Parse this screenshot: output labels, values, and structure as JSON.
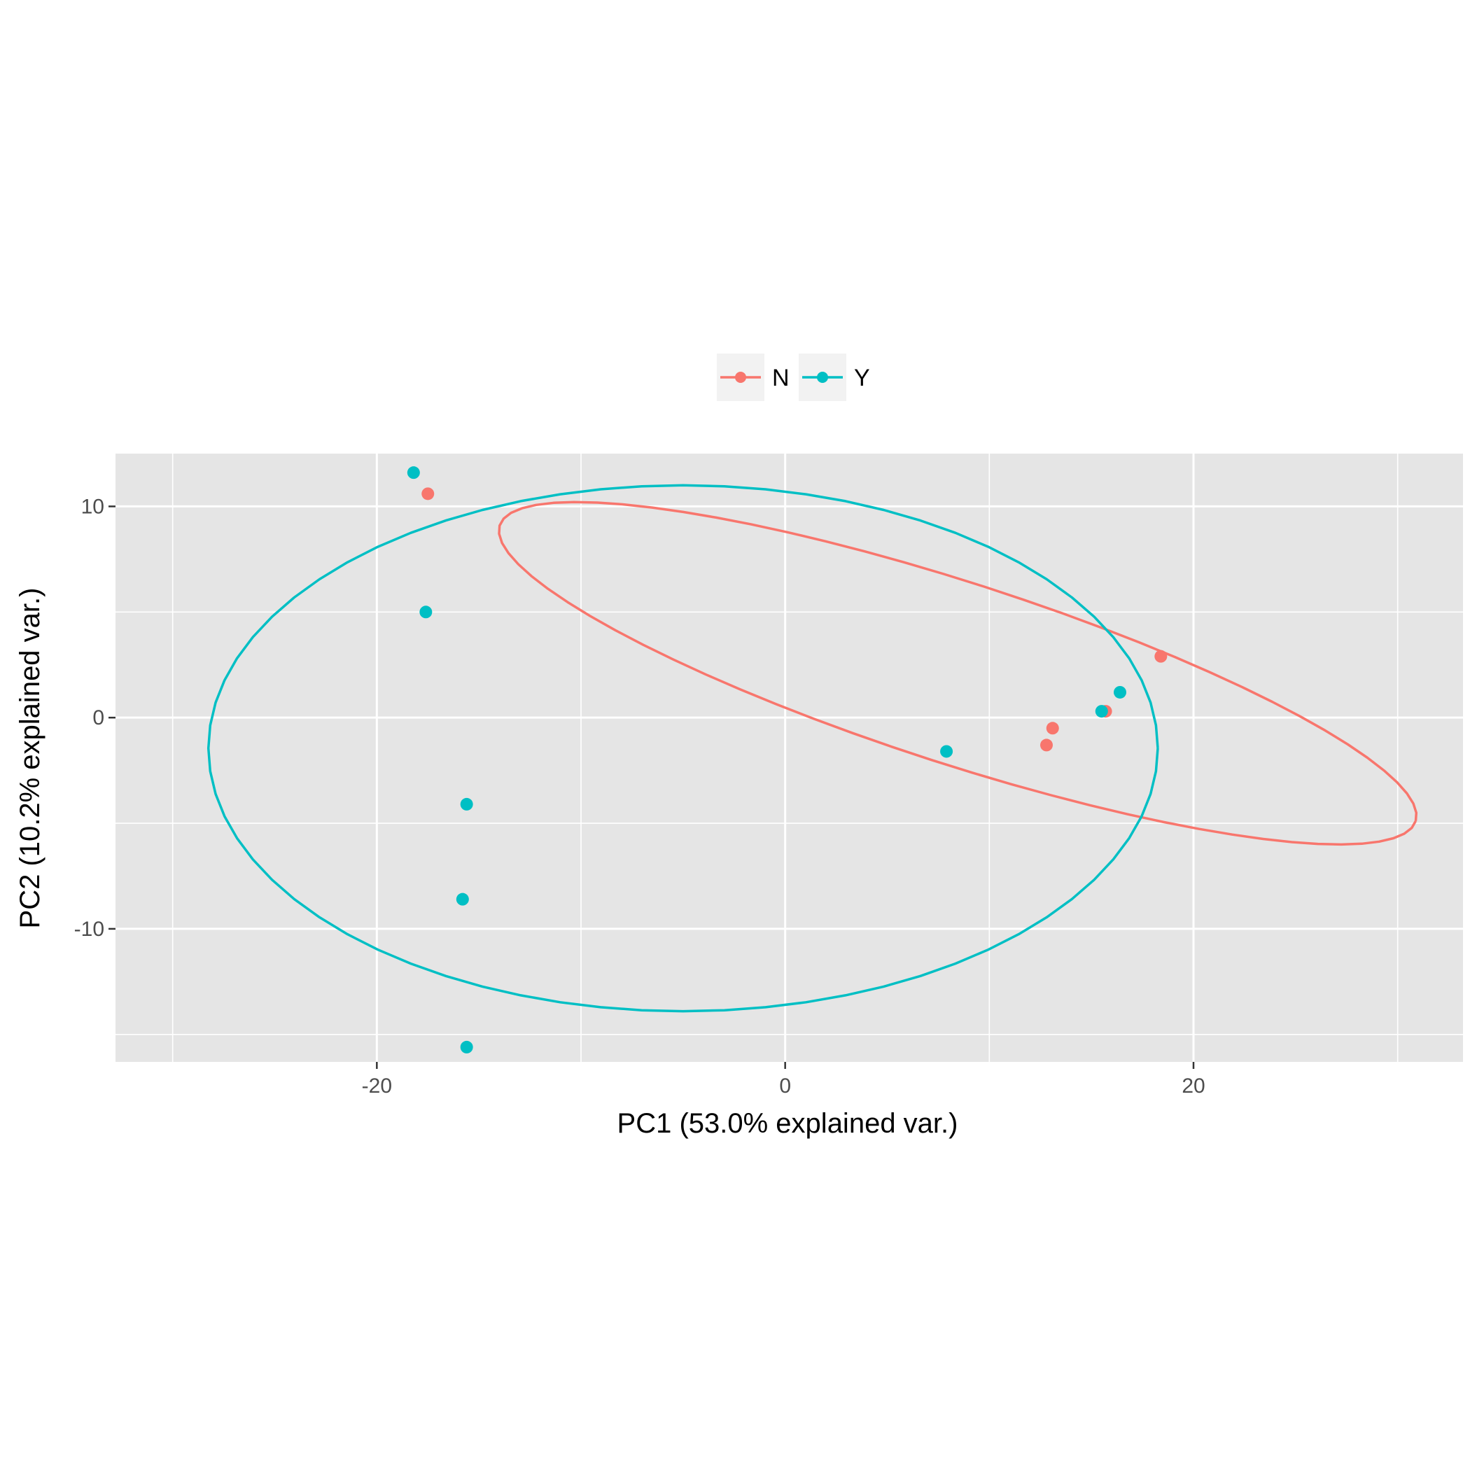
{
  "chart_data": {
    "type": "scatter",
    "title": "",
    "xlabel": "PC1 (53.0% explained var.)",
    "ylabel": "PC2 (10.2% explained var.)",
    "xlim": [
      -32.8,
      33.2
    ],
    "ylim": [
      -16.3,
      12.5
    ],
    "x_ticks": [
      -20,
      0,
      20
    ],
    "x_tick_labels": [
      "-20",
      "0",
      "20"
    ],
    "y_ticks": [
      -10,
      0,
      10
    ],
    "y_tick_labels": [
      "-10",
      "0",
      "10"
    ],
    "grid": true,
    "legend_position": "top",
    "panel_background": "#e5e5e5",
    "series": [
      {
        "name": "N",
        "color": "#f8766d",
        "points": [
          {
            "x": -17.5,
            "y": 10.6
          },
          {
            "x": 13.1,
            "y": -0.5
          },
          {
            "x": 12.8,
            "y": -1.3
          },
          {
            "x": 15.7,
            "y": 0.3
          },
          {
            "x": 18.4,
            "y": 2.9
          }
        ],
        "ellipse": {
          "cx": 8.45,
          "cy": 2.1,
          "rx": 23.5,
          "ry": 4.3,
          "angle_deg": -17.3
        }
      },
      {
        "name": "Y",
        "color": "#00bfc4",
        "points": [
          {
            "x": -18.2,
            "y": 11.6
          },
          {
            "x": -17.6,
            "y": 5.0
          },
          {
            "x": -15.6,
            "y": -4.1
          },
          {
            "x": -15.8,
            "y": -8.6
          },
          {
            "x": -15.6,
            "y": -15.6
          },
          {
            "x": 7.9,
            "y": -1.6
          },
          {
            "x": 15.5,
            "y": 0.3
          },
          {
            "x": 16.4,
            "y": 1.2
          }
        ],
        "ellipse": {
          "cx": -5.0,
          "cy": -1.45,
          "rx": 23.25,
          "ry": 12.45,
          "angle_deg": 0
        }
      }
    ]
  }
}
